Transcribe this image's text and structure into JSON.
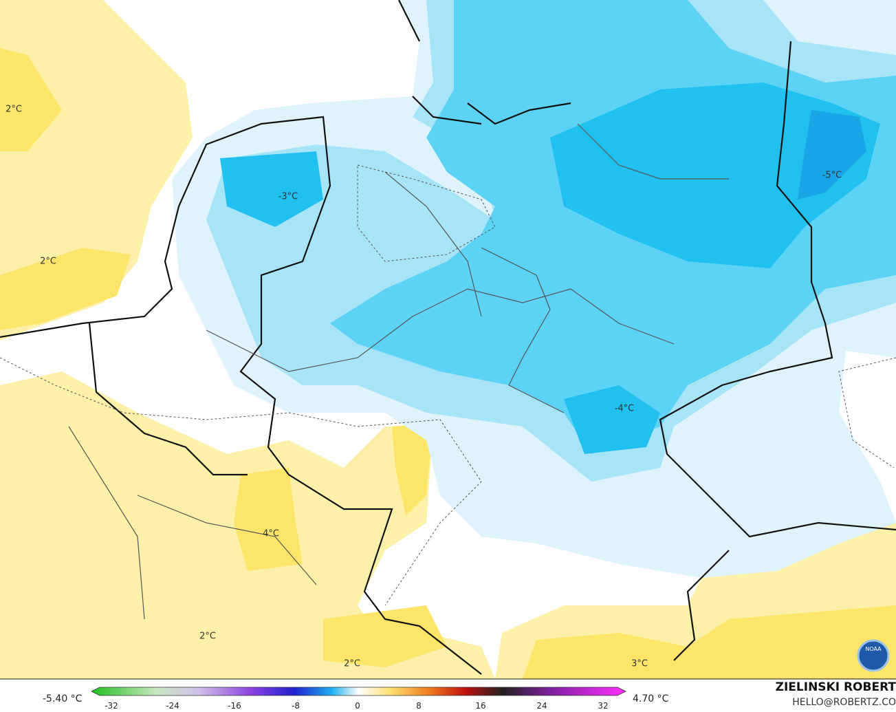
{
  "map": {
    "contour_labels": [
      "2°C",
      "2°C",
      "-3°C",
      "-5°C",
      "-4°C",
      "4°C",
      "2°C",
      "2°C",
      "3°C"
    ]
  },
  "colorbar": {
    "min_label": "-5.40 °C",
    "max_label": "4.70 °C",
    "ticks": [
      -32,
      -24,
      -16,
      -8,
      0,
      8,
      16,
      24,
      32
    ]
  },
  "credit": {
    "name": "ZIELINSKI ROBERT",
    "contact": "HELLO@ROBERTZ.CO",
    "logo": "NOAA"
  }
}
